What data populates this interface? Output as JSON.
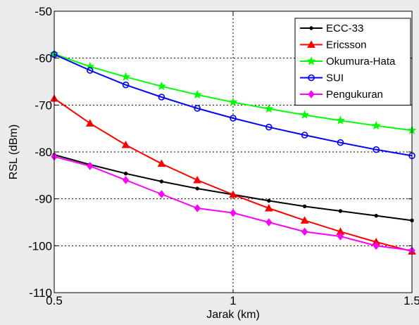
{
  "chart_data": {
    "type": "line",
    "xlabel": "Jarak (km)",
    "ylabel": "RSL (dBm)",
    "xlim": [
      0.5,
      1.5
    ],
    "ylim": [
      -110,
      -50
    ],
    "xticks": [
      0.5,
      1,
      1.5
    ],
    "xtick_labels": [
      "0.5",
      "1",
      "1.5"
    ],
    "yticks": [
      -110,
      -100,
      -90,
      -80,
      -70,
      -60,
      -50
    ],
    "ytick_labels": [
      "-110",
      "-100",
      "-90",
      "-80",
      "-70",
      "-60",
      "-50"
    ],
    "grid": true,
    "legend_position": "top-right",
    "x": [
      0.5,
      0.6,
      0.7,
      0.8,
      0.9,
      1.0,
      1.1,
      1.2,
      1.3,
      1.4,
      1.5
    ],
    "series": [
      {
        "name": "ECC-33",
        "color": "#000000",
        "marker": "dot",
        "values": [
          -80.6,
          -82.7,
          -84.6,
          -86.3,
          -87.8,
          -89.1,
          -90.4,
          -91.6,
          -92.6,
          -93.6,
          -94.6
        ]
      },
      {
        "name": "Ericsson",
        "color": "#ff0000",
        "marker": "triangle",
        "values": [
          -68.6,
          -73.9,
          -78.5,
          -82.5,
          -86.0,
          -89.1,
          -92.0,
          -94.6,
          -97.0,
          -99.2,
          -101.2
        ]
      },
      {
        "name": "Okumura-Hata",
        "color": "#00ff00",
        "marker": "star",
        "values": [
          -59.1,
          -61.8,
          -64.0,
          -66.0,
          -67.8,
          -69.4,
          -70.8,
          -72.1,
          -73.3,
          -74.4,
          -75.4
        ]
      },
      {
        "name": "SUI",
        "color": "#0000ff",
        "marker": "circle",
        "values": [
          -59.2,
          -62.6,
          -65.7,
          -68.3,
          -70.7,
          -72.8,
          -74.7,
          -76.4,
          -78.0,
          -79.5,
          -80.8
        ]
      },
      {
        "name": "Pengukuran",
        "color": "#ff00ff",
        "marker": "diamond",
        "values": [
          -81.0,
          -83.0,
          -86.0,
          -89.0,
          -92.0,
          -93.0,
          -95.0,
          -97.0,
          -98.0,
          -100.0,
          -101.0
        ]
      }
    ]
  }
}
